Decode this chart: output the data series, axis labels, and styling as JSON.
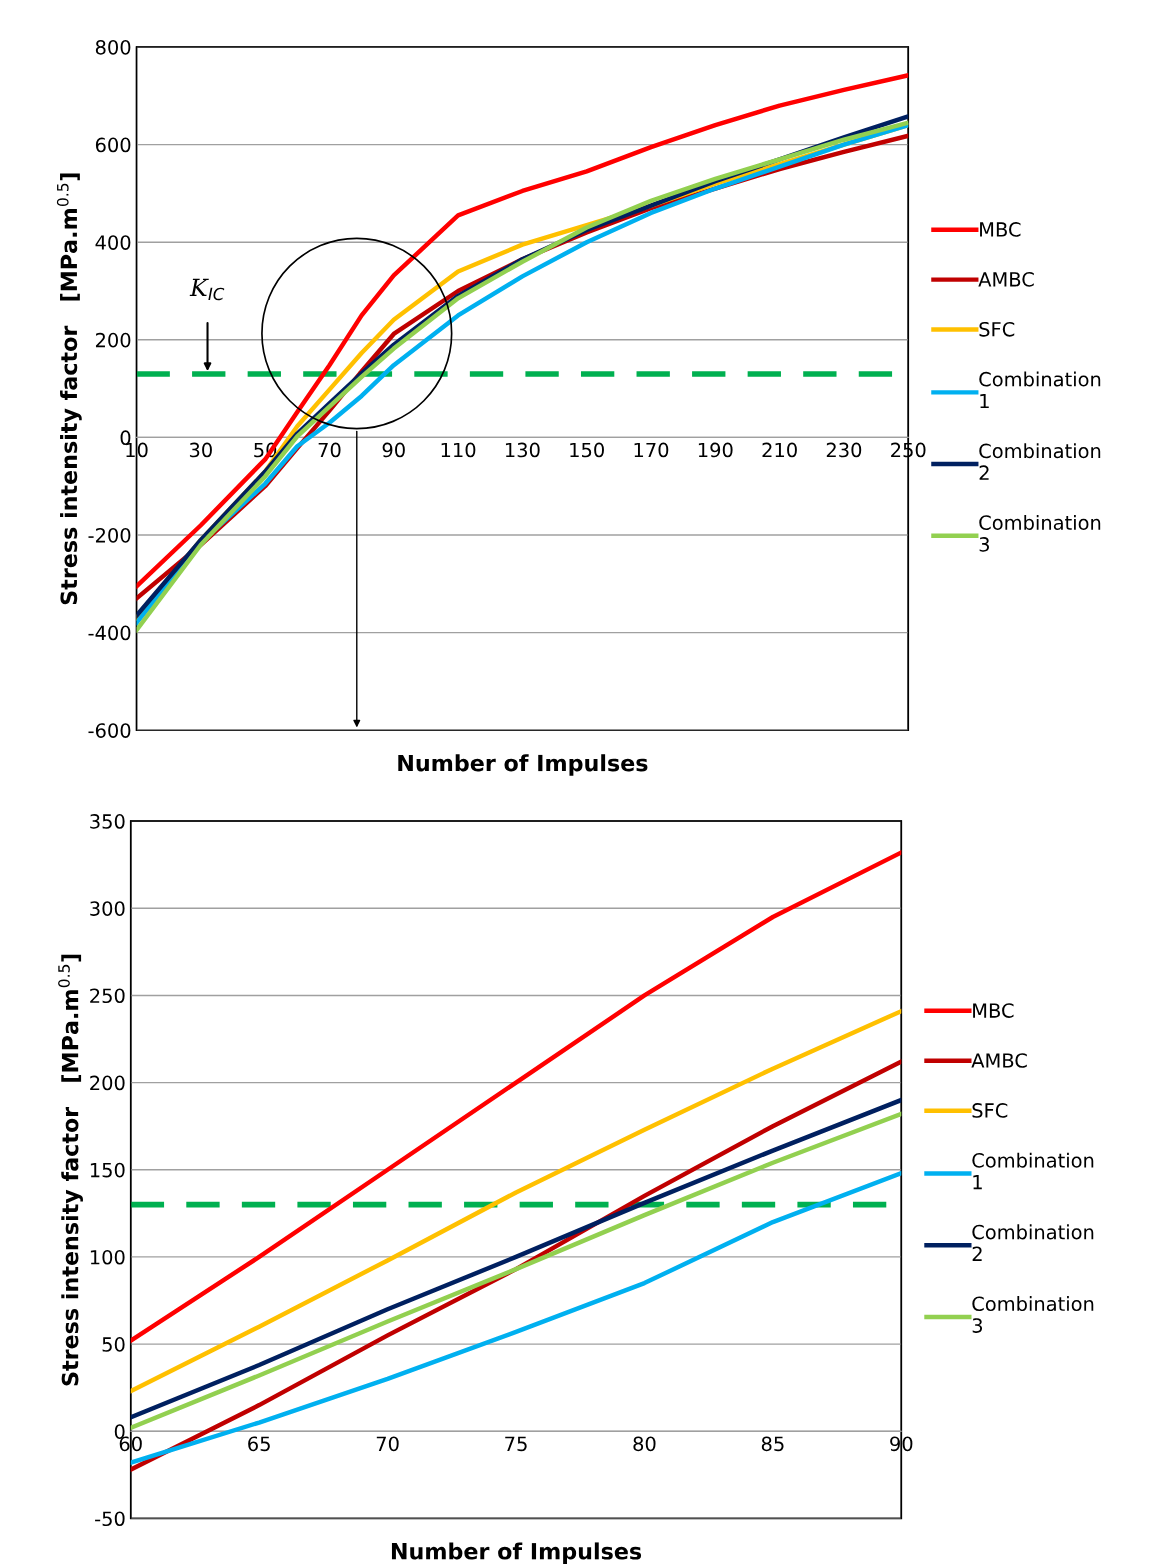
{
  "chart_data": [
    {
      "type": "line",
      "xlabel": "Number of Impulses",
      "ylabel": "Stress intensity factor   [MPa.m$^{0.5}$]",
      "x": [
        10,
        30,
        50,
        60,
        70,
        80,
        90,
        110,
        130,
        150,
        170,
        190,
        210,
        230,
        250
      ],
      "xlim": [
        10,
        250
      ],
      "xticks": [
        10,
        30,
        50,
        70,
        90,
        110,
        130,
        150,
        170,
        190,
        210,
        230,
        250
      ],
      "ylim": [
        -600,
        800
      ],
      "yticks": [
        -600,
        -400,
        -200,
        0,
        200,
        400,
        600,
        800
      ],
      "grid": "y",
      "legend": "right",
      "marker": "none",
      "line_style": "solid",
      "ref_lines": [
        {
          "axis": "y",
          "value": 130,
          "color": "#00b050",
          "line_style": "dashed"
        }
      ],
      "annotations": [
        "K$_{IC}$"
      ],
      "series": [
        {
          "name": "MBC",
          "color": "#ff0000",
          "values": [
            -305,
            -180,
            -45,
            52,
            148,
            250,
            332,
            455,
            505,
            545,
            595,
            640,
            680,
            712,
            742
          ]
        },
        {
          "name": "AMBC",
          "color": "#c00000",
          "values": [
            -330,
            -220,
            -100,
            -22,
            55,
            135,
            212,
            300,
            365,
            420,
            470,
            510,
            550,
            585,
            618
          ]
        },
        {
          "name": "SFC",
          "color": "#ffc000",
          "values": [
            -370,
            -210,
            -70,
            23,
            98,
            173,
            241,
            340,
            395,
            435,
            475,
            520,
            560,
            600,
            640
          ]
        },
        {
          "name": "Combination 1",
          "color": "#00b0f0",
          "values": [
            -380,
            -215,
            -95,
            -18,
            30,
            85,
            148,
            250,
            330,
            400,
            460,
            510,
            555,
            600,
            640
          ]
        },
        {
          "name": "Combination 2",
          "color": "#002060",
          "values": [
            -365,
            -210,
            -70,
            8,
            70,
            131,
            190,
            290,
            365,
            425,
            475,
            525,
            570,
            615,
            658
          ]
        },
        {
          "name": "Combination 3",
          "color": "#92d050",
          "values": [
            -395,
            -220,
            -80,
            2,
            63,
            124,
            182,
            285,
            360,
            430,
            485,
            530,
            570,
            610,
            645
          ]
        }
      ]
    },
    {
      "type": "line",
      "xlabel": "Number of Impulses",
      "ylabel": "Stress intensity factor   [MPa.m$^{0.5}$]",
      "x": [
        60,
        65,
        70,
        75,
        80,
        85,
        90
      ],
      "xlim": [
        60,
        90
      ],
      "xticks": [
        60,
        65,
        70,
        75,
        80,
        85,
        90
      ],
      "ylim": [
        -50,
        350
      ],
      "yticks": [
        -50,
        0,
        50,
        100,
        150,
        200,
        250,
        300,
        350
      ],
      "grid": "y",
      "legend": "right",
      "marker": "none",
      "line_style": "solid",
      "ref_lines": [
        {
          "axis": "y",
          "value": 130,
          "color": "#00b050",
          "line_style": "dashed"
        }
      ],
      "series": [
        {
          "name": "MBC",
          "color": "#ff0000",
          "values": [
            52,
            100,
            150,
            200,
            250,
            295,
            332
          ]
        },
        {
          "name": "AMBC",
          "color": "#c00000",
          "values": [
            -22,
            15,
            55,
            93,
            135,
            175,
            212
          ]
        },
        {
          "name": "SFC",
          "color": "#ffc000",
          "values": [
            23,
            60,
            98,
            137,
            173,
            208,
            241
          ]
        },
        {
          "name": "Combination 1",
          "color": "#00b0f0",
          "values": [
            -18,
            5,
            30,
            57,
            85,
            120,
            148
          ]
        },
        {
          "name": "Combination 2",
          "color": "#002060",
          "values": [
            8,
            38,
            70,
            100,
            131,
            161,
            190
          ]
        },
        {
          "name": "Combination 3",
          "color": "#92d050",
          "values": [
            2,
            32,
            63,
            93,
            124,
            154,
            182
          ]
        }
      ]
    }
  ]
}
